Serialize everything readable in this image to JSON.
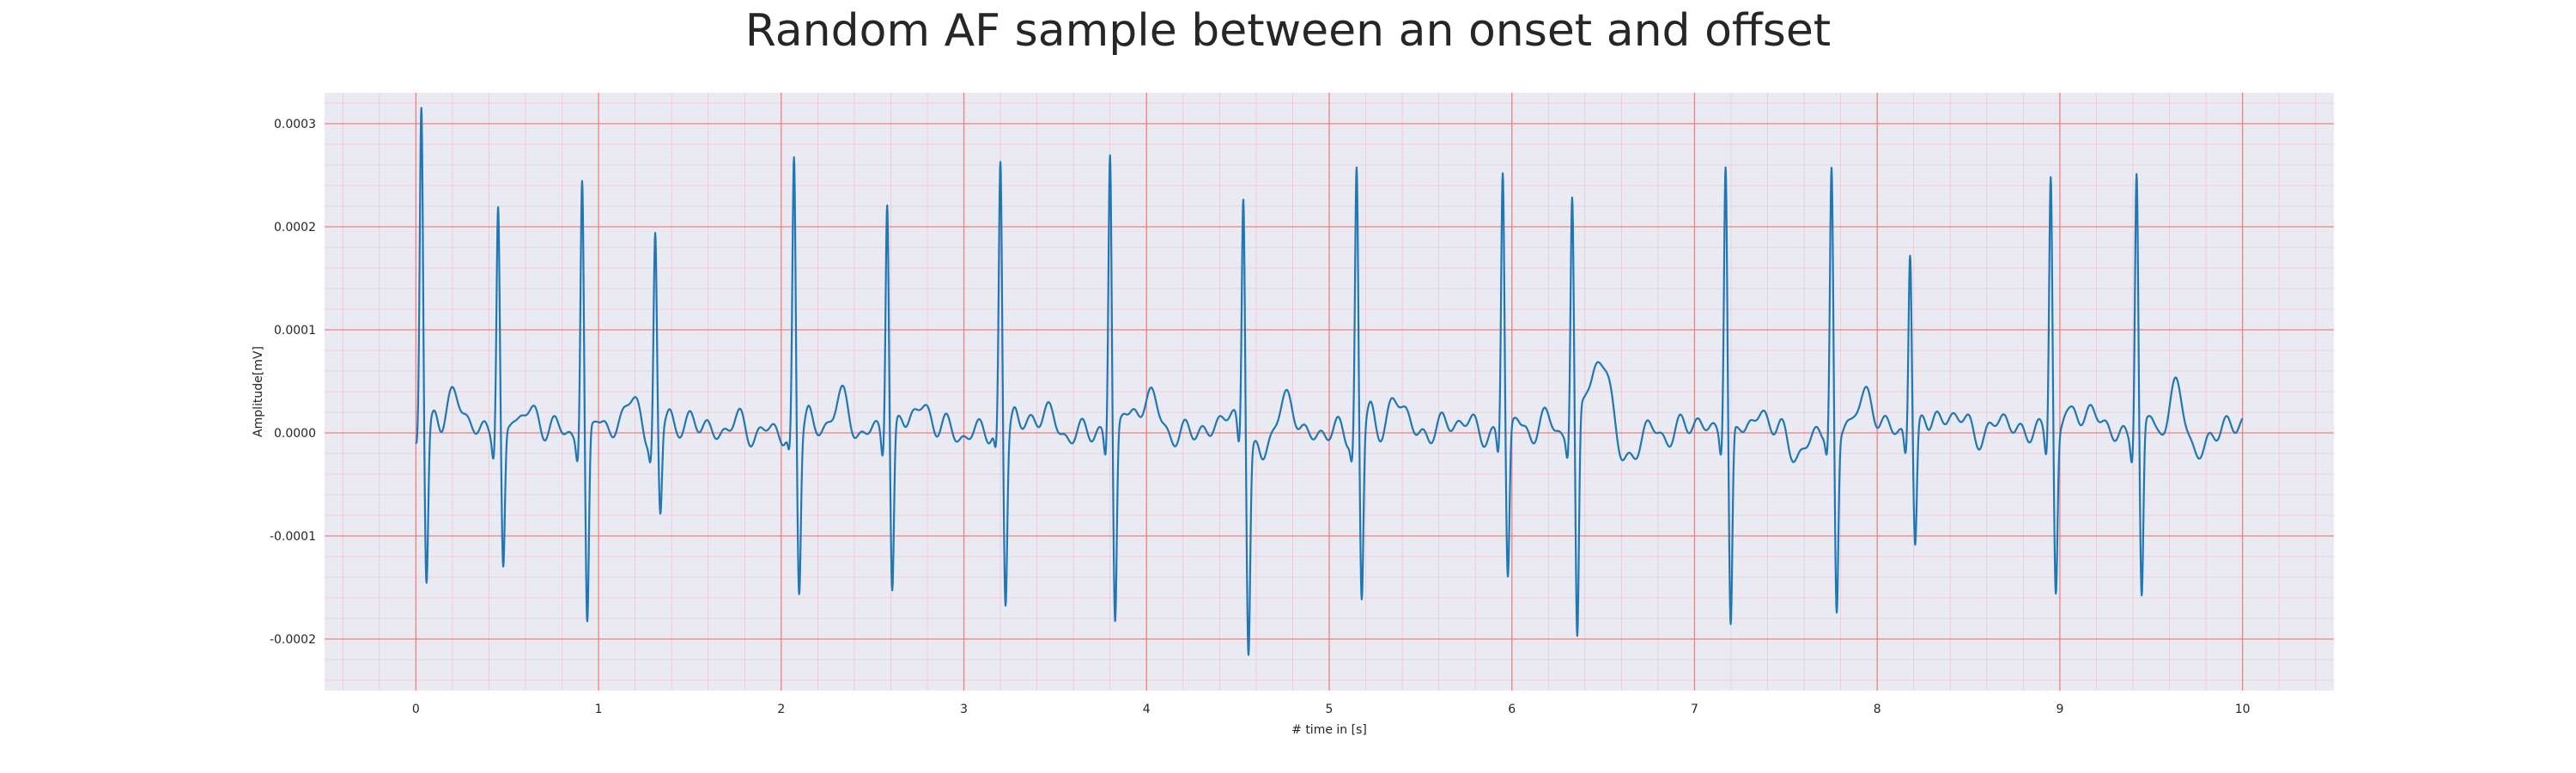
{
  "chart_data": {
    "type": "line",
    "title": "Random AF sample between an onset and offset",
    "xlabel": "# time in [s]",
    "ylabel": "Amplitude[mV]",
    "xlim": [
      -0.5,
      10.5
    ],
    "ylim": [
      -0.00025,
      0.00033
    ],
    "x_ticks": [
      0,
      1,
      2,
      3,
      4,
      5,
      6,
      7,
      8,
      9,
      10
    ],
    "x_tick_labels": [
      "0",
      "1",
      "2",
      "3",
      "4",
      "5",
      "6",
      "7",
      "8",
      "9",
      "10"
    ],
    "y_ticks": [
      -0.0002,
      -0.0001,
      0.0,
      0.0001,
      0.0002,
      0.0003
    ],
    "y_tick_labels": [
      "-0.0002",
      "-0.0001",
      "0.0000",
      "0.0001",
      "0.0002",
      "0.0003"
    ],
    "grid": true,
    "colors": {
      "line": "#1f77b4",
      "background": "#eaeaf2",
      "major_grid": "#f08080",
      "minor_grid": "#f4b6c2"
    },
    "beats": [
      {
        "t": 0.03,
        "r": 0.00031,
        "s": -0.00015
      },
      {
        "t": 0.45,
        "r": 0.000218,
        "s": -0.00014
      },
      {
        "t": 0.91,
        "r": 0.000247,
        "s": -0.000195
      },
      {
        "t": 1.31,
        "r": 0.000188,
        "s": -8.8e-05
      },
      {
        "t": 2.07,
        "r": 0.000262,
        "s": -0.000153
      },
      {
        "t": 2.58,
        "r": 0.000233,
        "s": -0.000158
      },
      {
        "t": 3.2,
        "r": 0.000262,
        "s": -0.000162
      },
      {
        "t": 3.8,
        "r": 0.000278,
        "s": -0.000188
      },
      {
        "t": 4.53,
        "r": 0.000245,
        "s": -0.000193
      },
      {
        "t": 5.15,
        "r": 0.000258,
        "s": -0.000165
      },
      {
        "t": 5.95,
        "r": 0.000256,
        "s": -0.000148
      },
      {
        "t": 6.33,
        "r": 0.000222,
        "s": -0.000225
      },
      {
        "t": 7.17,
        "r": 0.000258,
        "s": -0.000198
      },
      {
        "t": 7.75,
        "r": 0.000248,
        "s": -0.000182
      },
      {
        "t": 8.18,
        "r": 0.000181,
        "s": -0.000112
      },
      {
        "t": 8.95,
        "r": 0.000256,
        "s": -0.000155
      },
      {
        "t": 9.42,
        "r": 0.000254,
        "s": -0.000172
      }
    ],
    "waves": [
      {
        "t": 0.22,
        "a": 3e-05,
        "w": 0.06
      },
      {
        "t": 0.64,
        "a": 1.8e-05,
        "w": 0.06
      },
      {
        "t": 1.17,
        "a": 2.8e-05,
        "w": 0.05
      },
      {
        "t": 1.5,
        "a": 1.2e-05,
        "w": 0.05
      },
      {
        "t": 1.75,
        "a": 8e-06,
        "w": 0.06
      },
      {
        "t": 2.32,
        "a": 3e-05,
        "w": 0.05
      },
      {
        "t": 2.78,
        "a": 2.6e-05,
        "w": 0.05
      },
      {
        "t": 3.42,
        "a": 2.2e-05,
        "w": 0.05
      },
      {
        "t": 4.0,
        "a": 3.8e-05,
        "w": 0.05
      },
      {
        "t": 4.43,
        "a": 1.6e-05,
        "w": 0.05
      },
      {
        "t": 4.74,
        "a": 3.8e-05,
        "w": 0.05
      },
      {
        "t": 5.37,
        "a": 3e-05,
        "w": 0.05
      },
      {
        "t": 5.7,
        "a": 1.5e-05,
        "w": 0.05
      },
      {
        "t": 6.2,
        "a": 1e-05,
        "w": 0.05
      },
      {
        "t": 6.5,
        "a": 7.5e-05,
        "w": 0.07
      },
      {
        "t": 7.02,
        "a": 1.2e-05,
        "w": 0.05
      },
      {
        "t": 7.4,
        "a": 1.8e-05,
        "w": 0.05
      },
      {
        "t": 7.95,
        "a": 3.5e-05,
        "w": 0.05
      },
      {
        "t": 8.4,
        "a": 2.2e-05,
        "w": 0.05
      },
      {
        "t": 8.7,
        "a": 1.2e-05,
        "w": 0.05
      },
      {
        "t": 9.15,
        "a": 2.6e-05,
        "w": 0.05
      },
      {
        "t": 9.65,
        "a": 4e-05,
        "w": 0.05
      },
      {
        "t": 9.95,
        "a": 1.2e-05,
        "w": 0.05
      }
    ],
    "troughs": [
      {
        "t": 6.6,
        "a": -5e-05,
        "w": 0.05
      },
      {
        "t": 4.63,
        "a": -4e-05,
        "w": 0.05
      },
      {
        "t": 7.55,
        "a": -2.5e-05,
        "w": 0.04
      },
      {
        "t": 9.75,
        "a": -2.5e-05,
        "w": 0.05
      }
    ]
  }
}
